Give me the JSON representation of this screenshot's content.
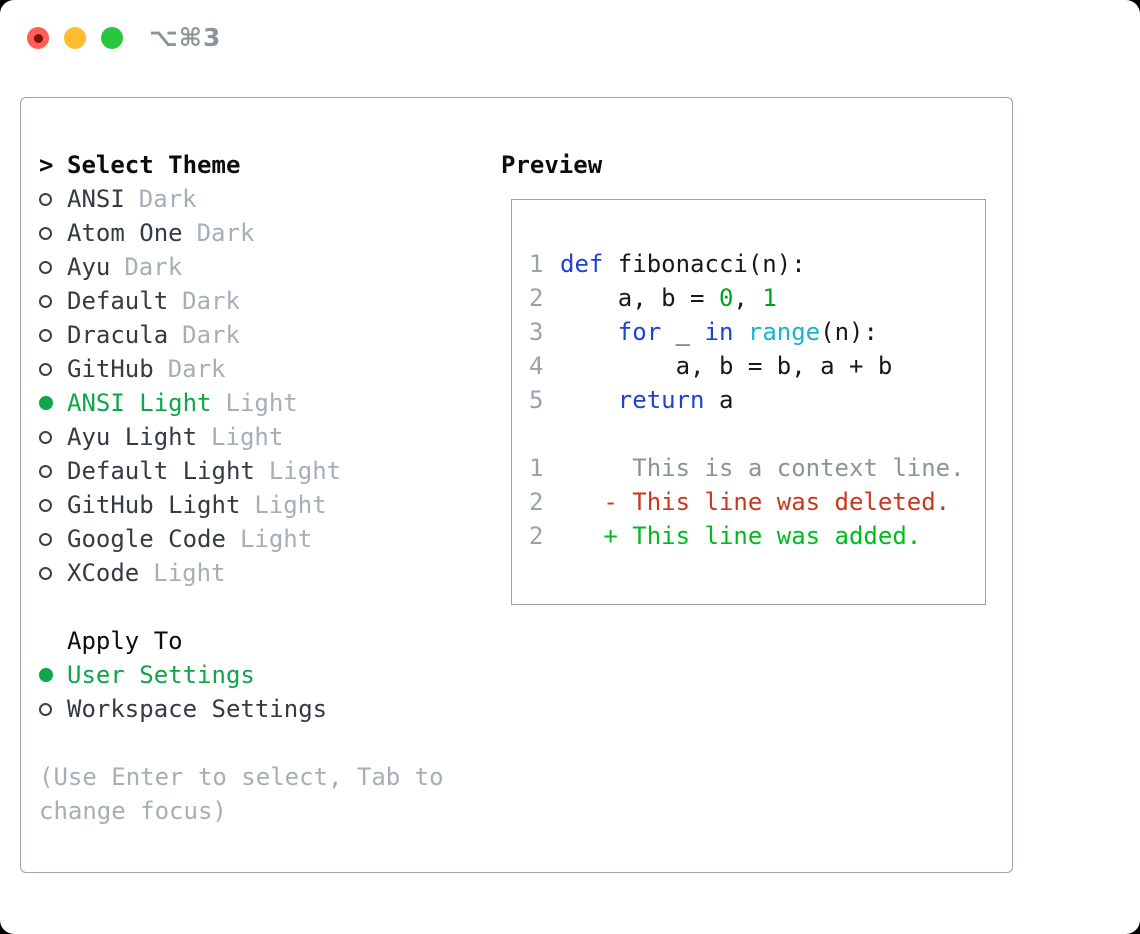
{
  "window": {
    "shortcut": "⌥⌘3",
    "traffic_lights": [
      "close",
      "minimize",
      "zoom"
    ]
  },
  "colors": {
    "selected_green": "#0fa548",
    "keyword_blue": "#1e42d2",
    "function_cyan": "#16b5ce",
    "literal_green": "#00a51d",
    "added_green": "#00bb1e",
    "deleted_red": "#c8381f",
    "muted_gray": "#a6aeb8",
    "gutter_gray": "#9aa3ad",
    "border_gray": "#9aa2ad"
  },
  "theme_panel": {
    "title_prefix": ">",
    "title": "Select Theme",
    "themes": [
      {
        "name": "ANSI",
        "variant": "Dark",
        "selected": false
      },
      {
        "name": "Atom One",
        "variant": "Dark",
        "selected": false
      },
      {
        "name": "Ayu",
        "variant": "Dark",
        "selected": false
      },
      {
        "name": "Default",
        "variant": "Dark",
        "selected": false
      },
      {
        "name": "Dracula",
        "variant": "Dark",
        "selected": false
      },
      {
        "name": "GitHub",
        "variant": "Dark",
        "selected": false
      },
      {
        "name": "ANSI Light",
        "variant": "Light",
        "selected": true
      },
      {
        "name": "Ayu Light",
        "variant": "Light",
        "selected": false
      },
      {
        "name": "Default Light",
        "variant": "Light",
        "selected": false
      },
      {
        "name": "GitHub Light",
        "variant": "Light",
        "selected": false
      },
      {
        "name": "Google Code",
        "variant": "Light",
        "selected": false
      },
      {
        "name": "XCode",
        "variant": "Light",
        "selected": false
      }
    ],
    "apply_to": {
      "title": "Apply To",
      "options": [
        {
          "name": "User Settings",
          "selected": true
        },
        {
          "name": "Workspace Settings",
          "selected": false
        }
      ]
    },
    "hint_lines": [
      "(Use Enter to select, Tab to",
      "change focus)"
    ]
  },
  "preview": {
    "title": "Preview",
    "code_lines": [
      {
        "num": "1",
        "segments": [
          {
            "t": "def",
            "c": "kw"
          },
          {
            "t": " fibonacci(n):",
            "c": "fg"
          }
        ]
      },
      {
        "num": "2",
        "segments": [
          {
            "t": "    a, b = ",
            "c": "fg"
          },
          {
            "t": "0",
            "c": "num"
          },
          {
            "t": ", ",
            "c": "fg"
          },
          {
            "t": "1",
            "c": "num"
          }
        ]
      },
      {
        "num": "3",
        "segments": [
          {
            "t": "    ",
            "c": "fg"
          },
          {
            "t": "for",
            "c": "kw"
          },
          {
            "t": " _ ",
            "c": "fg"
          },
          {
            "t": "in",
            "c": "kw"
          },
          {
            "t": " ",
            "c": "fg"
          },
          {
            "t": "range",
            "c": "fn"
          },
          {
            "t": "(n):",
            "c": "fg"
          }
        ]
      },
      {
        "num": "4",
        "segments": [
          {
            "t": "        a, b = b, a + b",
            "c": "fg"
          }
        ]
      },
      {
        "num": "5",
        "segments": [
          {
            "t": "    ",
            "c": "fg"
          },
          {
            "t": "return",
            "c": "kw"
          },
          {
            "t": " a",
            "c": "fg"
          }
        ]
      },
      {
        "num": "",
        "segments": []
      },
      {
        "num": "1",
        "segments": [
          {
            "t": "     This is a context line.",
            "c": "ctx"
          }
        ]
      },
      {
        "num": "2",
        "segments": [
          {
            "t": "   - This line was deleted.",
            "c": "del"
          }
        ]
      },
      {
        "num": "2",
        "segments": [
          {
            "t": "   + This line was added.",
            "c": "add"
          }
        ]
      }
    ]
  }
}
